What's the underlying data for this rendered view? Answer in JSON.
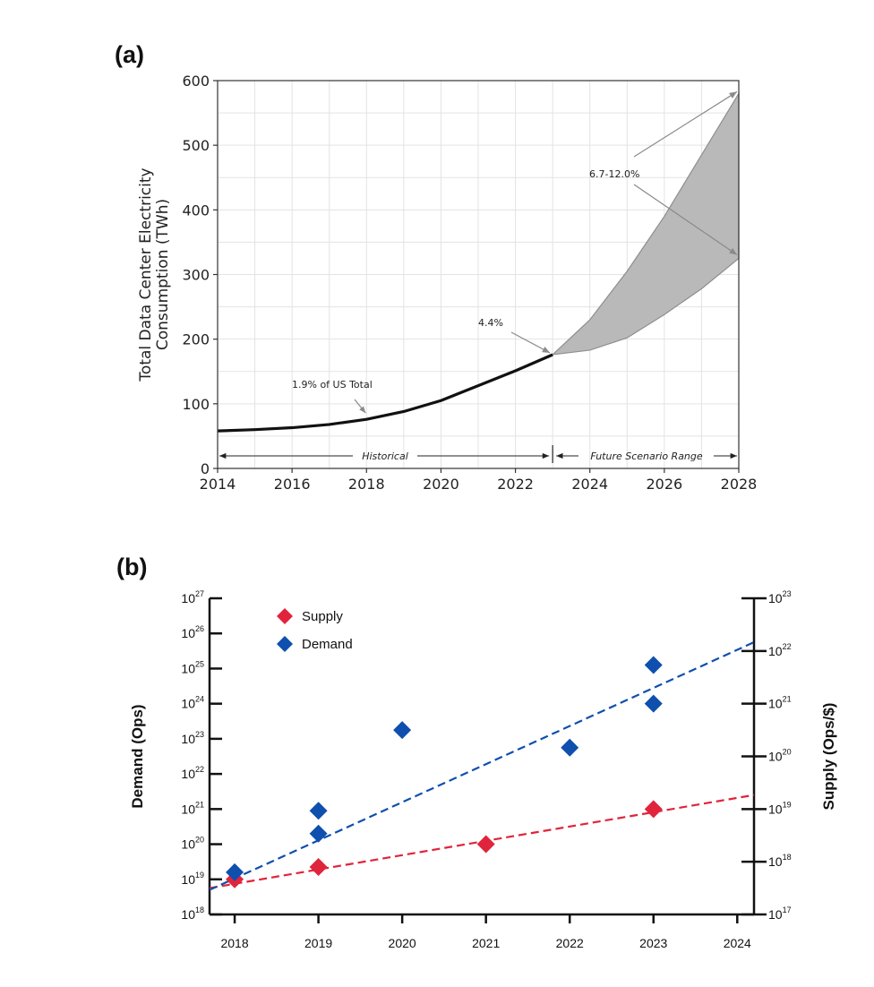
{
  "chart_data": [
    {
      "panel": "(a)",
      "type": "area",
      "xlabel": "",
      "ylabel": "Total Data Center Electricity Consumption (TWh)",
      "xlim": [
        2014,
        2028
      ],
      "ylim": [
        0,
        600
      ],
      "x_ticks": [
        2014,
        2016,
        2018,
        2020,
        2022,
        2024,
        2026,
        2028
      ],
      "y_ticks": [
        0,
        100,
        200,
        300,
        400,
        500,
        600
      ],
      "grid": true,
      "series": [
        {
          "kind": "line",
          "x": [
            2014,
            2015,
            2016,
            2017,
            2018,
            2019,
            2020,
            2021,
            2022,
            2023
          ],
          "values": [
            58,
            60,
            63,
            68,
            76,
            88,
            105,
            128,
            151,
            176
          ]
        },
        {
          "kind": "band",
          "x": [
            2023,
            2024,
            2025,
            2026,
            2027,
            2028
          ],
          "upper": [
            176,
            230,
            305,
            390,
            485,
            580
          ],
          "lower": [
            176,
            183,
            202,
            238,
            278,
            325
          ]
        }
      ],
      "annotations": [
        {
          "text": "1.9% of US Total",
          "x": 2018,
          "y": 76
        },
        {
          "text": "4.4%",
          "x": 2023,
          "y": 176
        },
        {
          "text": "6.7-12.0%",
          "targets": [
            [
              2028,
              580
            ],
            [
              2028,
              325
            ]
          ]
        }
      ],
      "spans": [
        {
          "text": "Historical",
          "from": 2014,
          "to": 2023
        },
        {
          "text": "Future Scenario Range",
          "from": 2023,
          "to": 2028
        }
      ]
    },
    {
      "panel": "(b)",
      "type": "scatter",
      "xlabel": "",
      "ylabel_left": "Demand (Ops)",
      "ylabel_right": "Supply (Ops/$)",
      "xlim": [
        2017.7,
        2024.2
      ],
      "x_ticks": [
        2018,
        2019,
        2020,
        2021,
        2022,
        2023,
        2024
      ],
      "left_scale": "log",
      "left_ylim_exp": [
        18,
        27
      ],
      "left_tick_exps": [
        18,
        19,
        20,
        21,
        22,
        23,
        24,
        25,
        26,
        27
      ],
      "right_scale": "log",
      "right_ylim_exp": [
        17,
        23
      ],
      "right_tick_exps": [
        17,
        18,
        19,
        20,
        21,
        22,
        23
      ],
      "legend": "top-left",
      "series": [
        {
          "name": "Supply",
          "color": "#e0243c",
          "marker": "diamond",
          "axis": "left",
          "x": [
            2018,
            2019,
            2021,
            2023
          ],
          "log10_values": [
            19.0,
            19.35,
            20.0,
            21.0
          ],
          "trend_log10": [
            [
              2017.7,
              18.75
            ],
            [
              2024.2,
              21.4
            ]
          ]
        },
        {
          "name": "Demand",
          "color": "#0f4fae",
          "marker": "diamond",
          "axis": "left",
          "x": [
            2018,
            2019,
            2019,
            2020,
            2022,
            2023,
            2023
          ],
          "log10_values": [
            19.2,
            20.3,
            20.95,
            23.25,
            22.75,
            24.0,
            25.1
          ],
          "trend_log10": [
            [
              2017.7,
              18.7
            ],
            [
              2024.2,
              25.75
            ]
          ]
        }
      ]
    }
  ]
}
